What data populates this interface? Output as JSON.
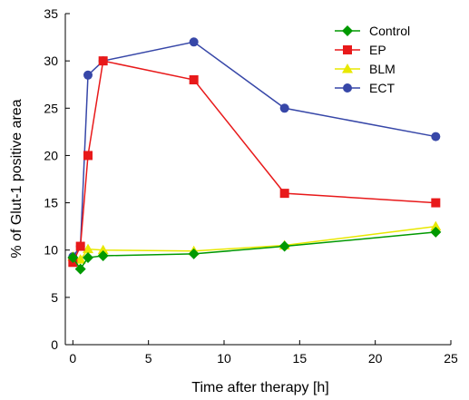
{
  "chart_data": {
    "type": "line",
    "xlabel": "Time after therapy [h]",
    "ylabel": "% of Glut-1 positive area",
    "xlim": [
      -0.5,
      25
    ],
    "ylim": [
      0,
      35
    ],
    "xticks": [
      "0",
      "5",
      "10",
      "15",
      "20",
      "25"
    ],
    "yticks": [
      "0",
      "5",
      "10",
      "15",
      "20",
      "25",
      "30",
      "35"
    ],
    "grid": false,
    "legend_position": "top-right",
    "series": [
      {
        "name": "Control",
        "color": "#009900",
        "marker": "diamond",
        "x": [
          0,
          0.5,
          1,
          2,
          8,
          14,
          24
        ],
        "y": [
          9.2,
          8.0,
          9.2,
          9.4,
          9.6,
          10.4,
          11.9
        ]
      },
      {
        "name": "EP",
        "color": "#e8191a",
        "marker": "square",
        "x": [
          0,
          0.5,
          1,
          2,
          8,
          14,
          24
        ],
        "y": [
          8.7,
          10.4,
          20.0,
          30.0,
          28.0,
          16.0,
          15.0
        ]
      },
      {
        "name": "BLM",
        "color": "#e8e800",
        "marker": "triangle",
        "x": [
          0,
          0.5,
          1,
          2,
          8,
          14,
          24
        ],
        "y": [
          9.3,
          9.0,
          10.1,
          10.0,
          9.9,
          10.5,
          12.5
        ]
      },
      {
        "name": "ECT",
        "color": "#3747a8",
        "marker": "circle",
        "x": [
          0,
          0.5,
          1,
          2,
          8,
          14,
          24
        ],
        "y": [
          9.3,
          10.4,
          28.5,
          30.0,
          32.0,
          25.0,
          22.0
        ]
      }
    ]
  }
}
